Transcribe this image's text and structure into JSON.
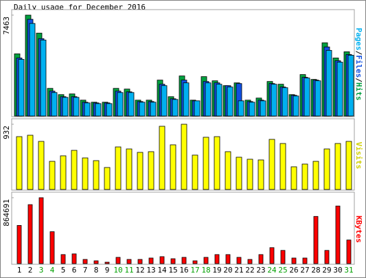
{
  "chart_data": [
    {
      "type": "bar",
      "title": "Daily usage for December 2016",
      "legend_separator": "/",
      "ylim": [
        0,
        7463
      ],
      "yticks": [
        7463
      ],
      "series": [
        {
          "name": "Hits",
          "color": "#00a040",
          "values": [
            4599,
            7463,
            6132,
            2044,
            1584,
            1635,
            1175,
            1022,
            1022,
            2044,
            1993,
            1175,
            1175,
            2657,
            1431,
            2964,
            1175,
            2913,
            2606,
            2248,
            2453,
            1175,
            1329,
            2555,
            2351,
            1584,
            3066,
            2708,
            5417,
            4292,
            4752
          ]
        },
        {
          "name": "Files",
          "color": "#1050e0",
          "values": [
            4292,
            7154,
            5723,
            1840,
            1431,
            1431,
            1022,
            971,
            971,
            1840,
            1789,
            1073,
            1073,
            2351,
            1278,
            2657,
            1124,
            2555,
            2453,
            2248,
            2402,
            1073,
            1175,
            2402,
            2146,
            1533,
            2862,
            2657,
            5110,
            4088,
            4548
          ]
        },
        {
          "name": "Pages",
          "color": "#00b0f0",
          "values": [
            4190,
            6847,
            5621,
            1737,
            1380,
            1380,
            971,
            920,
            920,
            1737,
            1737,
            1022,
            1022,
            2248,
            1226,
            2453,
            1124,
            2453,
            2351,
            2146,
            1124,
            1022,
            1124,
            2351,
            2095,
            1482,
            2811,
            2606,
            4855,
            3986,
            4497
          ]
        }
      ]
    },
    {
      "type": "bar",
      "ylim": [
        0,
        932
      ],
      "yticks": [
        932
      ],
      "series": [
        {
          "name": "Visits",
          "color": "#ffff00",
          "values": [
            755,
            775,
            687,
            402,
            481,
            559,
            451,
            412,
            314,
            608,
            579,
            530,
            540,
            903,
            638,
            932,
            491,
            746,
            755,
            540,
            461,
            432,
            422,
            716,
            657,
            324,
            363,
            402,
            579,
            657,
            687
          ]
        }
      ]
    },
    {
      "type": "bar",
      "ylim": [
        0,
        864691
      ],
      "yticks": [
        864691
      ],
      "categories": [
        "1",
        "2",
        "3",
        "4",
        "5",
        "6",
        "7",
        "8",
        "9",
        "10",
        "11",
        "12",
        "13",
        "14",
        "15",
        "16",
        "17",
        "18",
        "19",
        "20",
        "21",
        "22",
        "23",
        "24",
        "25",
        "26",
        "27",
        "28",
        "29",
        "30",
        "31"
      ],
      "highlight_categories": [
        "3",
        "4",
        "10",
        "11",
        "17",
        "18",
        "24",
        "25",
        "31"
      ],
      "highlight_color": "#00a000",
      "series": [
        {
          "name": "KBytes",
          "color": "#ff0000",
          "values": [
            500610,
            773670,
            864691,
            418690,
            118330,
            127430,
            54610,
            36410,
            18200,
            81920,
            54610,
            54610,
            72820,
            91020,
            63710,
            81920,
            36410,
            81920,
            118330,
            118330,
            81920,
            54610,
            118330,
            209350,
            172940,
            72820,
            72820,
            618940,
            172940,
            755470,
            309470
          ]
        }
      ]
    }
  ]
}
